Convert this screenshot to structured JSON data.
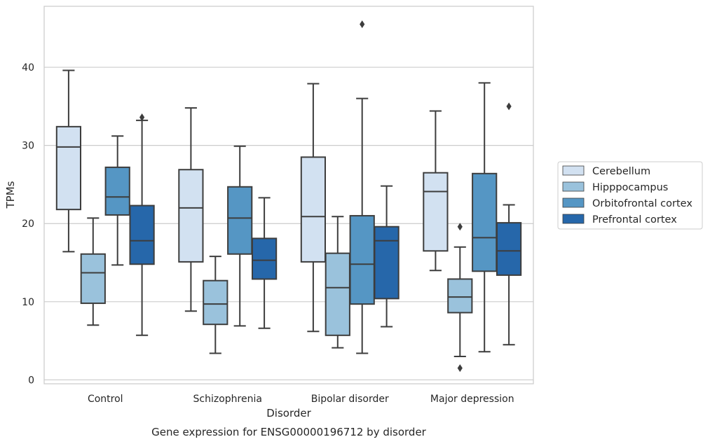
{
  "chart_data": {
    "type": "box",
    "title": "Gene expression for ENSG00000196712 by disorder",
    "xlabel": "Disorder",
    "ylabel": "TPMs",
    "ylim": [
      -0.5,
      47.8
    ],
    "yticks": [
      0,
      10,
      20,
      30,
      40
    ],
    "grid": true,
    "legend_position": "right",
    "categories": [
      "Control",
      "Schizophrenia",
      "Bipolar disorder",
      "Major depression"
    ],
    "series": [
      {
        "name": "Cerebellum",
        "color": "#d2e1f1",
        "boxes": [
          {
            "whisker_low": 16.4,
            "q1": 21.8,
            "median": 29.8,
            "q3": 32.4,
            "whisker_high": 39.6,
            "outliers": []
          },
          {
            "whisker_low": 8.8,
            "q1": 15.1,
            "median": 22.0,
            "q3": 26.9,
            "whisker_high": 34.8,
            "outliers": []
          },
          {
            "whisker_low": 6.2,
            "q1": 15.1,
            "median": 20.9,
            "q3": 28.5,
            "whisker_high": 37.9,
            "outliers": []
          },
          {
            "whisker_low": 14.0,
            "q1": 16.5,
            "median": 24.1,
            "q3": 26.5,
            "whisker_high": 34.4,
            "outliers": []
          }
        ]
      },
      {
        "name": "Hipppocampus",
        "color": "#9ac2dc",
        "boxes": [
          {
            "whisker_low": 7.0,
            "q1": 9.8,
            "median": 13.7,
            "q3": 16.1,
            "whisker_high": 20.7,
            "outliers": []
          },
          {
            "whisker_low": 3.4,
            "q1": 7.1,
            "median": 9.7,
            "q3": 12.7,
            "whisker_high": 15.8,
            "outliers": []
          },
          {
            "whisker_low": 4.1,
            "q1": 5.7,
            "median": 11.8,
            "q3": 16.2,
            "whisker_high": 20.9,
            "outliers": []
          },
          {
            "whisker_low": 3.0,
            "q1": 8.6,
            "median": 10.6,
            "q3": 12.9,
            "whisker_high": 17.0,
            "outliers": [
              1.5,
              19.6
            ]
          }
        ]
      },
      {
        "name": "Orbitofrontal cortex",
        "color": "#5596c4",
        "boxes": [
          {
            "whisker_low": 14.7,
            "q1": 21.1,
            "median": 23.4,
            "q3": 27.2,
            "whisker_high": 31.2,
            "outliers": []
          },
          {
            "whisker_low": 6.9,
            "q1": 16.1,
            "median": 20.7,
            "q3": 24.7,
            "whisker_high": 29.9,
            "outliers": []
          },
          {
            "whisker_low": 3.4,
            "q1": 9.7,
            "median": 14.8,
            "q3": 21.0,
            "whisker_high": 36.0,
            "outliers": [
              45.5
            ]
          },
          {
            "whisker_low": 3.6,
            "q1": 13.9,
            "median": 18.2,
            "q3": 26.4,
            "whisker_high": 38.0,
            "outliers": []
          }
        ]
      },
      {
        "name": "Prefrontal cortex",
        "color": "#2667aa",
        "boxes": [
          {
            "whisker_low": 5.7,
            "q1": 14.8,
            "median": 17.8,
            "q3": 22.3,
            "whisker_high": 33.2,
            "outliers": [
              33.6
            ]
          },
          {
            "whisker_low": 6.6,
            "q1": 12.9,
            "median": 15.3,
            "q3": 18.1,
            "whisker_high": 23.3,
            "outliers": []
          },
          {
            "whisker_low": 6.8,
            "q1": 10.4,
            "median": 17.8,
            "q3": 19.6,
            "whisker_high": 24.8,
            "outliers": []
          },
          {
            "whisker_low": 4.5,
            "q1": 13.4,
            "median": 16.5,
            "q3": 20.1,
            "whisker_high": 22.4,
            "outliers": [
              35.0
            ]
          }
        ]
      }
    ]
  }
}
